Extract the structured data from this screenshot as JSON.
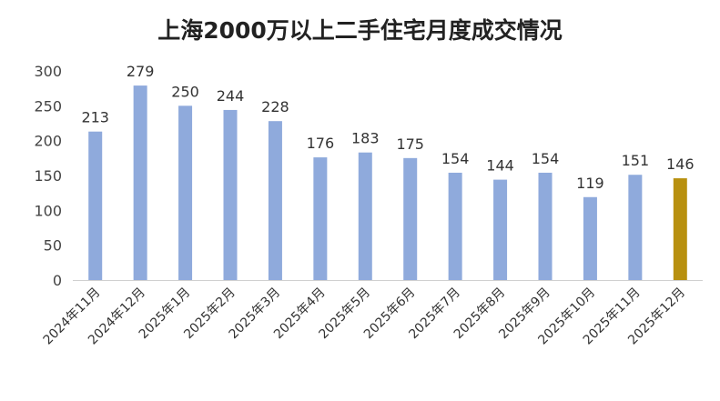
{
  "chart_data": {
    "type": "bar",
    "title": "上海2000万以上二手住宅月度成交情况",
    "categories": [
      "2024年11月",
      "2024年12月",
      "2025年1月",
      "2025年2月",
      "2025年3月",
      "2025年4月",
      "2025年5月",
      "2025年6月",
      "2025年7月",
      "2025年8月",
      "2025年9月",
      "2025年10月",
      "2025年11月",
      "2025年12月"
    ],
    "values": [
      213,
      279,
      250,
      244,
      228,
      176,
      183,
      175,
      154,
      144,
      154,
      119,
      151,
      146
    ],
    "ylim": [
      0,
      300
    ],
    "yticks": [
      0,
      50,
      100,
      150,
      200,
      250,
      300
    ],
    "grid": false,
    "legend": "none",
    "colors": {
      "bar": "#8faadc",
      "highlight": "#b8900f",
      "axis": "#d0d0d0"
    },
    "highlight_index": 13
  }
}
